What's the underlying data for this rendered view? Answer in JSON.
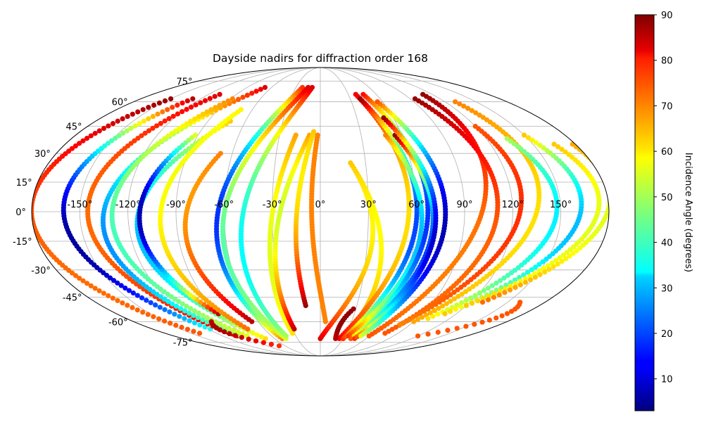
{
  "chart_data": {
    "type": "scatter",
    "projection": "mollweide",
    "title": "Dayside nadirs for diffraction order 168",
    "grid": true,
    "lon_ticks": [
      {
        "value": -150,
        "label": "-150°"
      },
      {
        "value": -120,
        "label": "-120°"
      },
      {
        "value": -90,
        "label": "-90°"
      },
      {
        "value": -60,
        "label": "-60°"
      },
      {
        "value": -30,
        "label": "-30°"
      },
      {
        "value": 0,
        "label": "0°"
      },
      {
        "value": 30,
        "label": "30°"
      },
      {
        "value": 60,
        "label": "60°"
      },
      {
        "value": 90,
        "label": "90°"
      },
      {
        "value": 120,
        "label": "120°"
      },
      {
        "value": 150,
        "label": "150°"
      }
    ],
    "lat_ticks": [
      {
        "value": 75,
        "label": "75°"
      },
      {
        "value": 60,
        "label": "60°"
      },
      {
        "value": 45,
        "label": "45°"
      },
      {
        "value": 30,
        "label": "30°"
      },
      {
        "value": 15,
        "label": "15°"
      },
      {
        "value": 0,
        "label": "0°"
      },
      {
        "value": -15,
        "label": "-15°"
      },
      {
        "value": -30,
        "label": "-30°"
      },
      {
        "value": -45,
        "label": "-45°"
      },
      {
        "value": -60,
        "label": "-60°"
      },
      {
        "value": -75,
        "label": "-75°"
      }
    ],
    "colorbar": {
      "label": "Incidence Angle (degrees)",
      "min": 3,
      "max": 90,
      "colormap": "jet",
      "ticks": [
        {
          "value": 10,
          "label": "10"
        },
        {
          "value": 20,
          "label": "20"
        },
        {
          "value": 30,
          "label": "30"
        },
        {
          "value": 40,
          "label": "40"
        },
        {
          "value": 50,
          "label": "50"
        },
        {
          "value": 60,
          "label": "60"
        },
        {
          "value": 70,
          "label": "70"
        },
        {
          "value": 80,
          "label": "80"
        },
        {
          "value": 90,
          "label": "90"
        }
      ]
    },
    "orbits": [
      {
        "lat": [
          -68,
          62
        ],
        "lon_south": -140,
        "lon_equator": -180,
        "lon_north": -150,
        "inc_south": 72,
        "inc_equator": 72,
        "inc_north": 88
      },
      {
        "lat": [
          -65,
          62
        ],
        "lon_south": -118,
        "lon_equator": -160,
        "lon_north": -128,
        "inc_south": 38,
        "inc_equator": 8,
        "inc_north": 85
      },
      {
        "lat": [
          -70,
          65
        ],
        "lon_south": -102,
        "lon_equator": -145,
        "lon_north": -108,
        "inc_south": 82,
        "inc_equator": 70,
        "inc_north": 82
      },
      {
        "lat": [
          -70,
          70
        ],
        "lon_south": -98,
        "lon_equator": -135,
        "lon_north": -68,
        "inc_south": 50,
        "inc_equator": 28,
        "inc_north": 82
      },
      {
        "lat": [
          -70,
          62
        ],
        "lon_south": -90,
        "lon_equator": -130,
        "lon_north": -88,
        "inc_south": 55,
        "inc_equator": 42,
        "inc_north": 68
      },
      {
        "lat": [
          -72,
          48
        ],
        "lon_south": -72,
        "lon_equator": -115,
        "lon_north": -72,
        "inc_south": 60,
        "inc_equator": 30,
        "inc_north": 62
      },
      {
        "lat": [
          -55,
          40
        ],
        "lon_south": -90,
        "lon_equator": -113,
        "lon_north": -92,
        "inc_south": 85,
        "inc_equator": 8,
        "inc_north": 55
      },
      {
        "lat": [
          -65,
          55
        ],
        "lon_south": -78,
        "lon_equator": -100,
        "lon_north": -70,
        "inc_south": 70,
        "inc_equator": 58,
        "inc_north": 58
      },
      {
        "lat": [
          -60,
          30
        ],
        "lon_south": -66,
        "lon_equator": -85,
        "lon_north": -68,
        "inc_south": 85,
        "inc_equator": 68,
        "inc_north": 68
      },
      {
        "lat": [
          -72,
          70
        ],
        "lon_south": -50,
        "lon_equator": -64,
        "lon_north": -22,
        "inc_south": 68,
        "inc_equator": 18,
        "inc_north": 75
      },
      {
        "lat": [
          -72,
          70
        ],
        "lon_south": -45,
        "lon_equator": -60,
        "lon_north": -15,
        "inc_south": 55,
        "inc_equator": 45,
        "inc_north": 82
      },
      {
        "lat": [
          -70,
          70
        ],
        "lon_south": -42,
        "lon_equator": -48,
        "lon_north": -10,
        "inc_south": 50,
        "inc_equator": 38,
        "inc_north": 82
      },
      {
        "lat": [
          -68,
          40
        ],
        "lon_south": -32,
        "lon_equator": -32,
        "lon_north": -18,
        "inc_south": 60,
        "inc_equator": 55,
        "inc_north": 65
      },
      {
        "lat": [
          -65,
          40
        ],
        "lon_south": -28,
        "lon_equator": -28,
        "lon_north": -8,
        "inc_south": 85,
        "inc_equator": 55,
        "inc_north": 65
      },
      {
        "lat": [
          -50,
          42
        ],
        "lon_south": -12,
        "lon_equator": -15,
        "lon_north": -5,
        "inc_south": 88,
        "inc_equator": 62,
        "inc_north": 62
      },
      {
        "lat": [
          -60,
          40
        ],
        "lon_south": 5,
        "lon_equator": -5,
        "lon_north": -2,
        "inc_south": 68,
        "inc_equator": 68,
        "inc_north": 68
      },
      {
        "lat": [
          -72,
          25
        ],
        "lon_south": 0,
        "lon_equator": 32,
        "lon_north": 20,
        "inc_south": 82,
        "inc_equator": 60,
        "inc_north": 62
      },
      {
        "lat": [
          -72,
          25
        ],
        "lon_south": 30,
        "lon_equator": 40,
        "lon_north": 20,
        "inc_south": 72,
        "inc_equator": 58,
        "inc_north": 62
      },
      {
        "lat": [
          -72,
          65
        ],
        "lon_south": 25,
        "lon_equator": 55,
        "lon_north": 38,
        "inc_south": 80,
        "inc_equator": 60,
        "inc_north": 80
      },
      {
        "lat": [
          -72,
          62
        ],
        "lon_south": 30,
        "lon_equator": 60,
        "lon_north": 40,
        "inc_south": 75,
        "inc_equator": 20,
        "inc_north": 88
      },
      {
        "lat": [
          -70,
          40
        ],
        "lon_south": 35,
        "lon_equator": 63,
        "lon_north": 48,
        "inc_south": 75,
        "inc_equator": 30,
        "inc_north": 68
      },
      {
        "lat": [
          -72,
          65
        ],
        "lon_south": 40,
        "lon_equator": 67,
        "lon_north": 46,
        "inc_south": 72,
        "inc_equator": 18,
        "inc_north": 78
      },
      {
        "lat": [
          -70,
          40
        ],
        "lon_south": 42,
        "lon_equator": 70,
        "lon_north": 55,
        "inc_south": 60,
        "inc_equator": 20,
        "inc_north": 88
      },
      {
        "lat": [
          -72,
          50
        ],
        "lon_south": 45,
        "lon_equator": 72,
        "lon_north": 52,
        "inc_south": 75,
        "inc_equator": 10,
        "inc_north": 88
      },
      {
        "lat": [
          -70,
          60
        ],
        "lon_south": 50,
        "lon_equator": 78,
        "lon_north": 55,
        "inc_south": 55,
        "inc_equator": 8,
        "inc_north": 72
      },
      {
        "lat": [
          -70,
          65
        ],
        "lon_south": 60,
        "lon_equator": 100,
        "lon_north": 110,
        "inc_south": 72,
        "inc_equator": 70,
        "inc_north": 88
      },
      {
        "lat": [
          -68,
          62
        ],
        "lon_south": 75,
        "lon_equator": 110,
        "lon_north": 95,
        "inc_south": 72,
        "inc_equator": 72,
        "inc_north": 88
      },
      {
        "lat": [
          -62,
          45
        ],
        "lon_south": 80,
        "lon_equator": 122,
        "lon_north": 120,
        "inc_south": 68,
        "inc_equator": 75,
        "inc_north": 72
      },
      {
        "lat": [
          -60,
          60
        ],
        "lon_south": 90,
        "lon_equator": 135,
        "lon_north": 130,
        "inc_south": 65,
        "inc_equator": 60,
        "inc_north": 68
      },
      {
        "lat": [
          -58,
          38
        ],
        "lon_south": 100,
        "lon_equator": 145,
        "lon_north": 135,
        "inc_south": 60,
        "inc_equator": 35,
        "inc_north": 50
      },
      {
        "lat": [
          -55,
          40
        ],
        "lon_south": 110,
        "lon_equator": 160,
        "lon_north": 150,
        "inc_south": 62,
        "inc_equator": 30,
        "inc_north": 62
      },
      {
        "lat": [
          -50,
          35
        ],
        "lon_south": 120,
        "lon_equator": 170,
        "lon_north": 165,
        "inc_south": 62,
        "inc_equator": 55,
        "inc_north": 62
      },
      {
        "lat": [
          -48,
          35
        ],
        "lon_south": 130,
        "lon_equator": 176,
        "lon_north": 178,
        "inc_south": 70,
        "inc_equator": 55,
        "inc_north": 65
      },
      {
        "lat": [
          -72,
          -52
        ],
        "lon_south": 20,
        "lon_equator": 20,
        "lon_north": 28,
        "inc_south": 85,
        "inc_equator": 88,
        "inc_north": 88
      },
      {
        "lat": [
          -78,
          -60
        ],
        "lon_south": -70,
        "lon_equator": -105,
        "lon_north": -105,
        "inc_south": 75,
        "inc_equator": 85,
        "inc_north": 85
      },
      {
        "lat": [
          -70,
          -48
        ],
        "lon_south": 120,
        "lon_equator": 160,
        "lon_north": 160,
        "inc_south": 72,
        "inc_equator": 72,
        "inc_north": 72
      }
    ]
  }
}
